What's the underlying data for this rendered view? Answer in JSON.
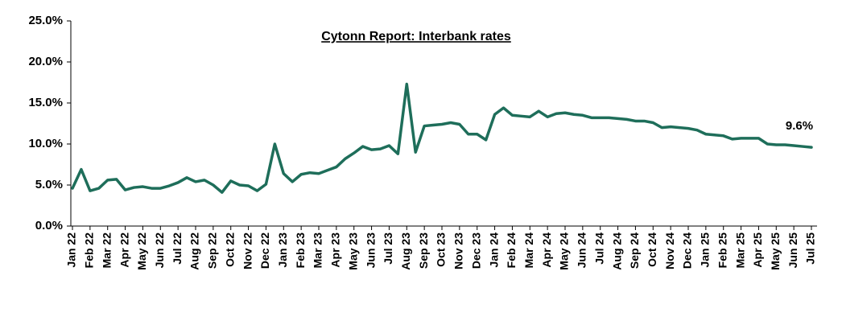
{
  "chart_data": {
    "type": "line",
    "title": "Cytonn Report: Interbank rates",
    "categories": [
      "Jan 22",
      null,
      "Feb 22",
      null,
      "Mar 22",
      null,
      "Apr 22",
      null,
      "May 22",
      null,
      "Jun 22",
      null,
      "Jul 22",
      null,
      "Aug 22",
      null,
      "Sep 22",
      null,
      "Oct 22",
      null,
      "Nov 22",
      null,
      "Dec 22",
      null,
      "Jan 23",
      null,
      "Feb 23",
      null,
      "Mar 23",
      null,
      "Apr 23",
      null,
      "May 23",
      null,
      "Jun 23",
      null,
      "Jul 23",
      null,
      "Aug 23",
      null,
      "Sep 23",
      null,
      "Oct 23",
      null,
      "Nov 23",
      null,
      "Dec 23",
      null,
      "Jan 24",
      null,
      "Feb 24",
      null,
      "Mar 24",
      null,
      "Apr 24",
      null,
      "May 24",
      null,
      "Jun 24",
      null,
      "Jul 24",
      null,
      "Aug 24",
      null,
      "Sep 24",
      null,
      "Oct 24",
      null,
      "Nov 24",
      null,
      "Dec 24",
      null,
      "Jan 25",
      null,
      "Feb 25",
      null,
      "Mar 25",
      null,
      "Apr 25",
      null,
      "May 25",
      null,
      "Jun 25",
      null,
      "Jul 25"
    ],
    "values": [
      4.6,
      6.9,
      4.3,
      4.6,
      5.6,
      5.7,
      4.4,
      4.7,
      4.8,
      4.6,
      4.6,
      4.9,
      5.3,
      5.9,
      5.4,
      5.6,
      5.0,
      4.1,
      5.5,
      5.0,
      4.9,
      4.3,
      5.1,
      10.0,
      6.4,
      5.4,
      6.3,
      6.5,
      6.4,
      6.8,
      7.2,
      8.2,
      8.9,
      9.7,
      9.3,
      9.4,
      9.8,
      8.8,
      17.3,
      9.0,
      12.2,
      12.3,
      12.4,
      12.6,
      12.4,
      11.2,
      11.2,
      10.5,
      13.6,
      14.4,
      13.5,
      13.4,
      13.3,
      14.0,
      13.3,
      13.7,
      13.8,
      13.6,
      13.5,
      13.2,
      13.2,
      13.2,
      13.1,
      13.0,
      12.8,
      12.8,
      12.6,
      12.0,
      12.1,
      12.0,
      11.9,
      11.7,
      11.2,
      11.1,
      11.0,
      10.6,
      10.7,
      10.7,
      10.7,
      10.0,
      9.9,
      9.9,
      9.8,
      9.7,
      9.6
    ],
    "value_labels": [
      null,
      null,
      null,
      null,
      null,
      null,
      null,
      null,
      null,
      null,
      null,
      null,
      null,
      null,
      null,
      null,
      null,
      null,
      null,
      null,
      null,
      null,
      null,
      null,
      null,
      null,
      null,
      null,
      null,
      null,
      null,
      null,
      null,
      null,
      null,
      null,
      null,
      null,
      null,
      null,
      null,
      null,
      null,
      null,
      null,
      null,
      null,
      null,
      null,
      null,
      null,
      null,
      null,
      null,
      null,
      null,
      null,
      null,
      null,
      null,
      null,
      null,
      null,
      null,
      null,
      null,
      null,
      null,
      null,
      null,
      null,
      null,
      null,
      null,
      null,
      null,
      null,
      null,
      null,
      null,
      null,
      null,
      null,
      null,
      "9.6%"
    ],
    "color": "#1e6e5a",
    "ylim": [
      0,
      25
    ],
    "yticks": [
      {
        "value": 0,
        "label": "0.0%"
      },
      {
        "value": 5,
        "label": "5.0%"
      },
      {
        "value": 10,
        "label": "10.0%"
      },
      {
        "value": 15,
        "label": "15.0%"
      },
      {
        "value": 20,
        "label": "20.0%"
      },
      {
        "value": 25,
        "label": "25.0%"
      }
    ],
    "grid": false
  }
}
